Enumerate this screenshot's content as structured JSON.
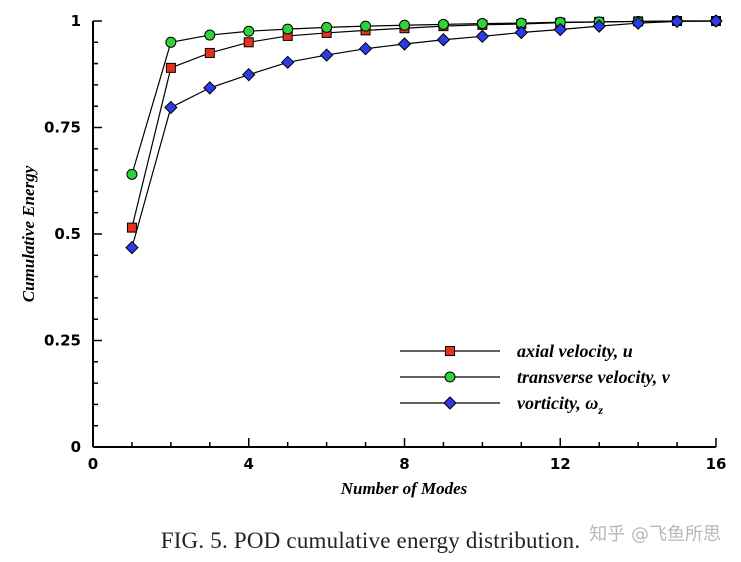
{
  "chart_data": {
    "type": "line",
    "xlabel": "Number of Modes",
    "ylabel": "Cumulative Energy",
    "xlim": [
      0,
      16
    ],
    "ylim": [
      0,
      1
    ],
    "xticks": [
      0,
      4,
      8,
      12,
      16
    ],
    "yticks": [
      0,
      0.25,
      0.5,
      0.75,
      1
    ],
    "xtick_labels": [
      "0",
      "4",
      "8",
      "12",
      "16"
    ],
    "ytick_labels": [
      "0",
      "0.25",
      "0.5",
      "0.75",
      "1"
    ],
    "x": [
      1,
      2,
      3,
      4,
      5,
      6,
      7,
      8,
      9,
      10,
      11,
      12,
      13,
      14,
      15,
      16
    ],
    "series": [
      {
        "name": "axial velocity, u",
        "marker": "square",
        "color": "#e8301c",
        "values": [
          0.515,
          0.89,
          0.925,
          0.95,
          0.965,
          0.972,
          0.978,
          0.983,
          0.988,
          0.991,
          0.993,
          0.996,
          0.998,
          0.999,
          1.0,
          1.0
        ]
      },
      {
        "name": "transverse velocity, v",
        "marker": "circle",
        "color": "#2ed33a",
        "values": [
          0.64,
          0.95,
          0.967,
          0.976,
          0.981,
          0.985,
          0.988,
          0.99,
          0.992,
          0.994,
          0.995,
          0.997,
          0.998,
          0.999,
          1.0,
          1.0
        ]
      },
      {
        "name": "vorticity, ω",
        "name_subscript": "z",
        "marker": "diamond",
        "color": "#2b3be6",
        "values": [
          0.468,
          0.797,
          0.843,
          0.874,
          0.903,
          0.92,
          0.935,
          0.946,
          0.956,
          0.964,
          0.973,
          0.98,
          0.988,
          0.995,
          0.999,
          1.0
        ]
      }
    ],
    "legend_position": "bottom-right",
    "grid": false
  },
  "caption": "FIG. 5. POD cumulative energy distribution.",
  "watermark": "知乎 @飞鱼所思"
}
